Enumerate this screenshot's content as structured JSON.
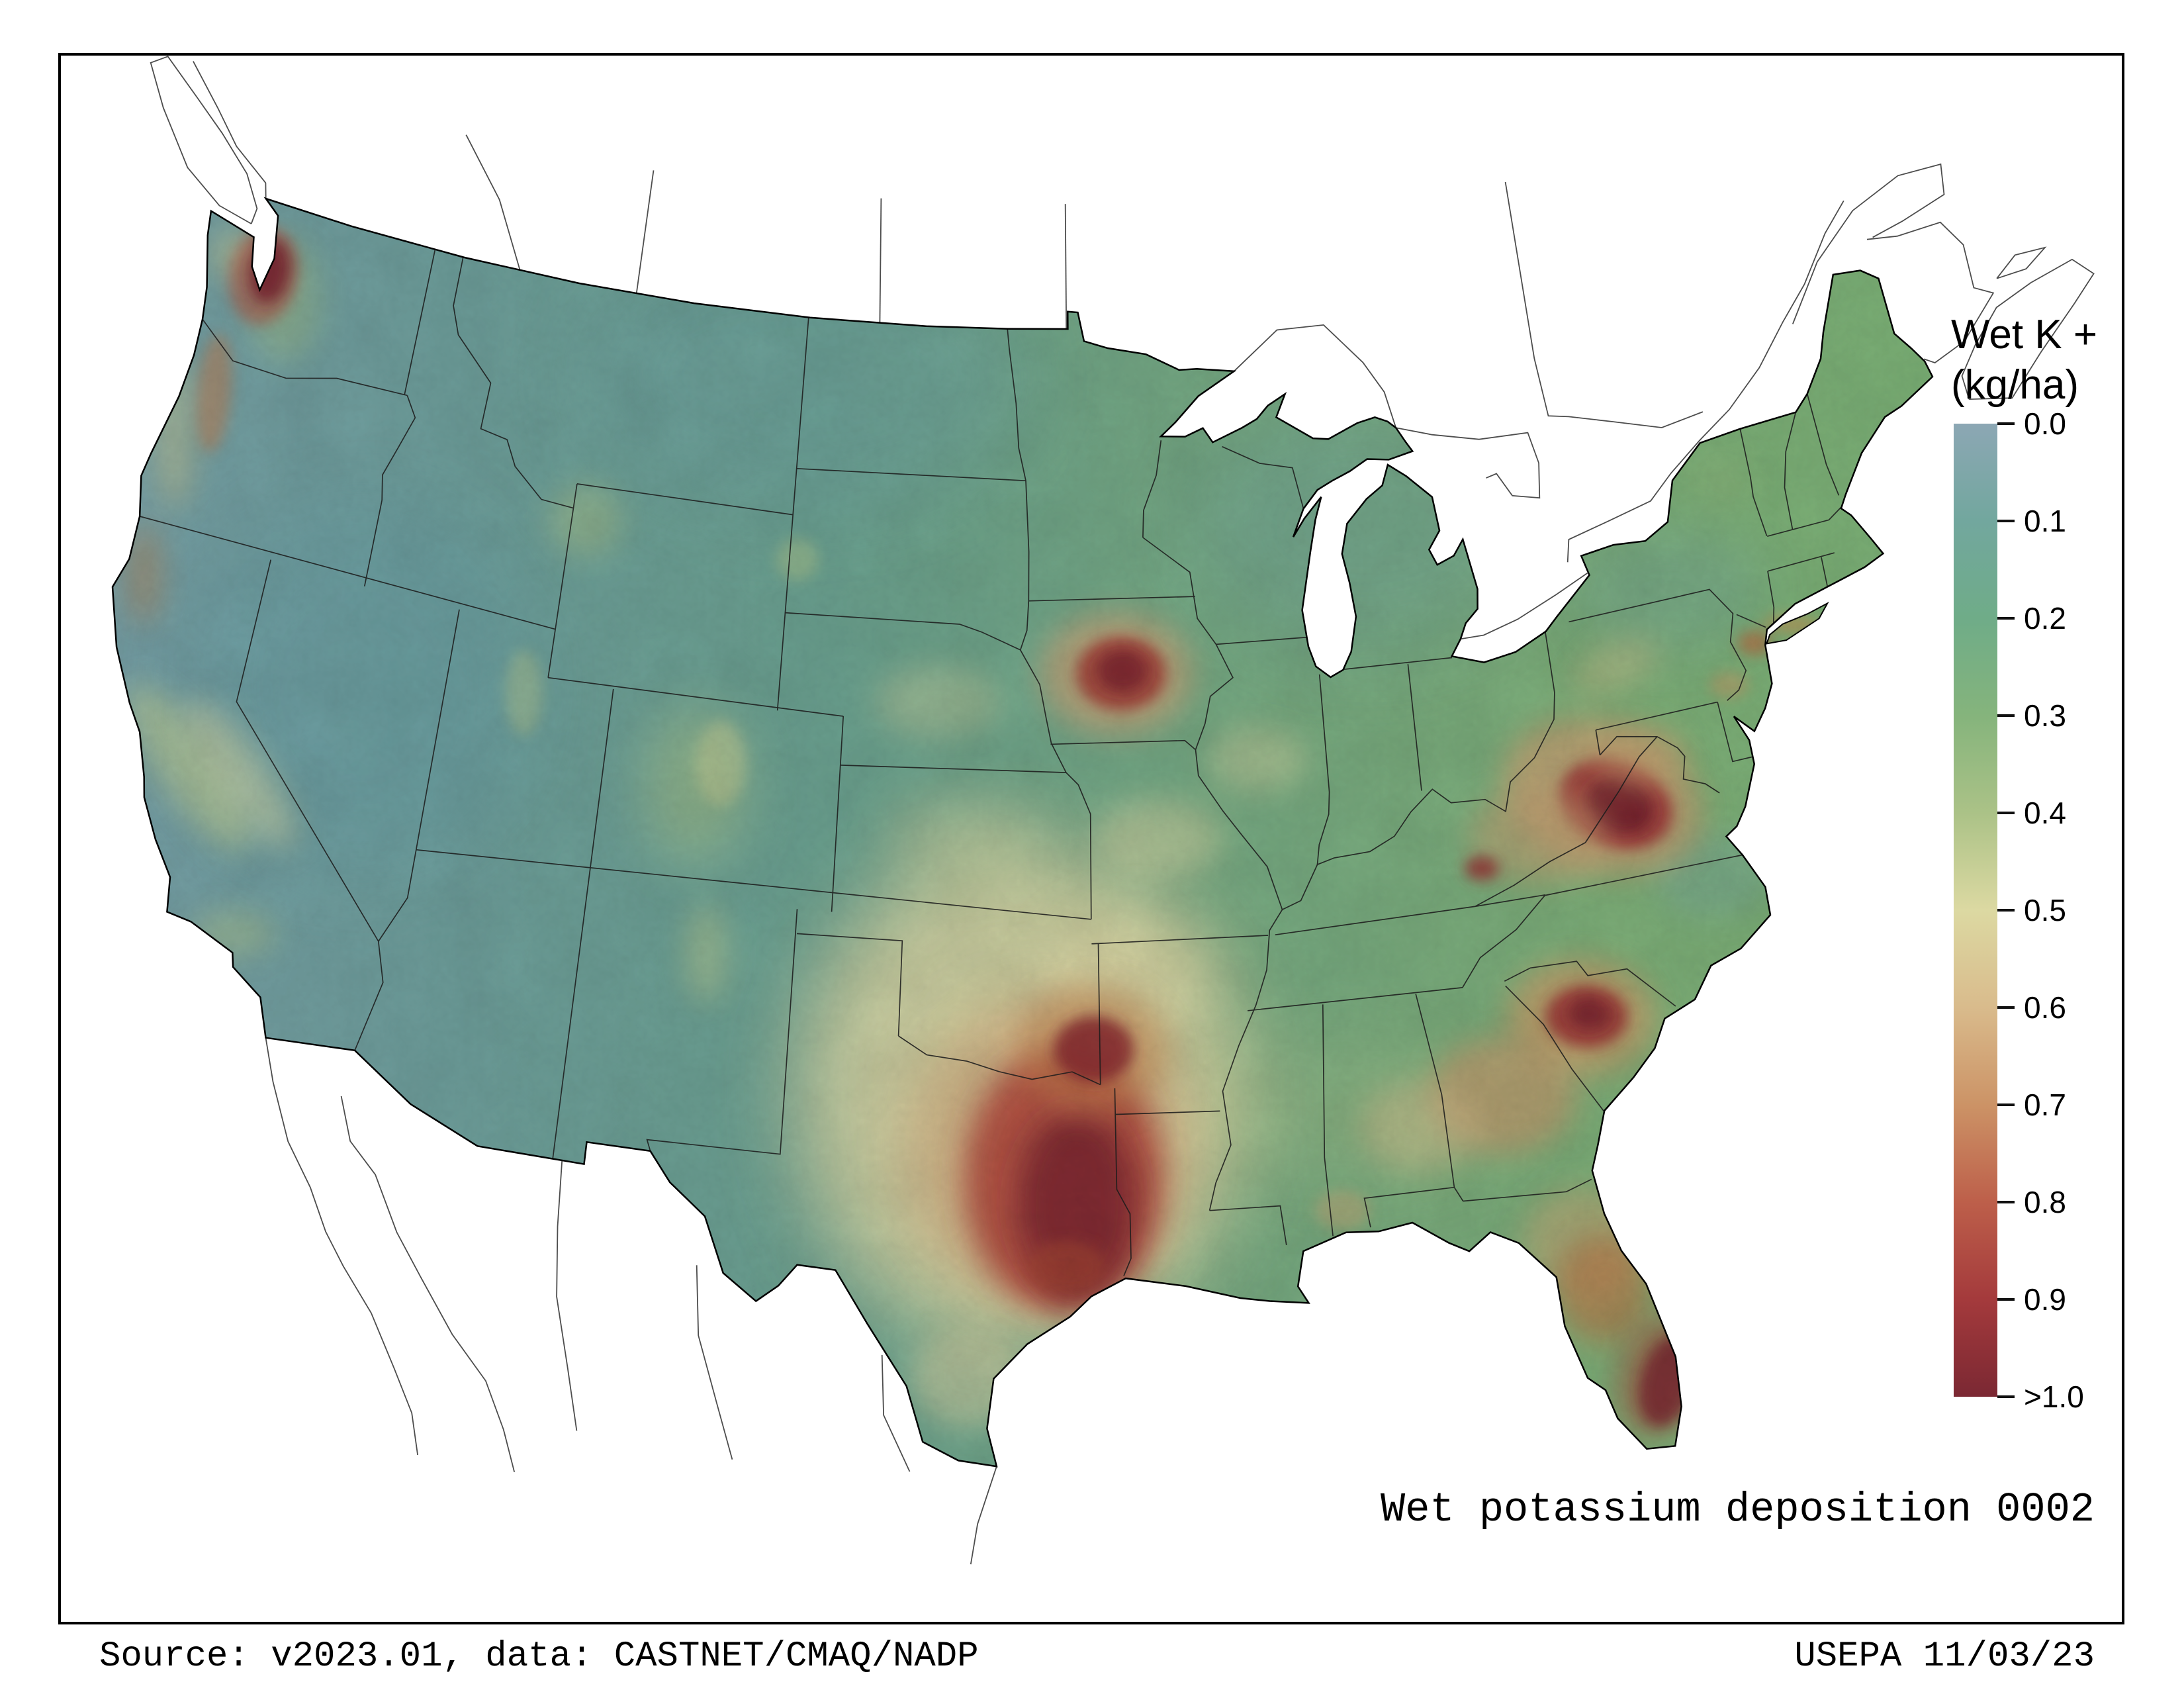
{
  "page": {
    "background": "#ffffff",
    "frame_color": "#000000"
  },
  "legend": {
    "title_line1": "Wet K +",
    "title_line2": "(kg/ha)",
    "tick_labels": [
      "0.0",
      "0.1",
      "0.2",
      "0.3",
      "0.4",
      "0.5",
      "0.6",
      "0.7",
      "0.8",
      "0.9",
      ">1.0"
    ],
    "colors": [
      "#8CA7B4",
      "#72A79E",
      "#6FAC88",
      "#85B47C",
      "#ABC287",
      "#DCD9A2",
      "#D9BB8C",
      "#CC9366",
      "#BD5F4A",
      "#A43A3C",
      "#7B2833"
    ]
  },
  "footer": {
    "caption": "Wet potassium deposition 0002",
    "source": "Source: v2023.01, data: CASTNET/CMAQ/NADP",
    "agency_date": "USEPA 11/03/23"
  },
  "map": {
    "region": "Contiguous United States",
    "quantity": "Wet K + deposition (kg/ha)",
    "base_gradient": [
      "#7CA5AD",
      "#72A4A1",
      "#6FA795",
      "#7AAF87",
      "#82B57D",
      "#81B97B"
    ],
    "high_areas": [
      {
        "area": "Puget Sound WA",
        "approx_level": ">1.0"
      },
      {
        "area": "Central Iowa",
        "approx_level": "0.9"
      },
      {
        "area": "East Texas / NW Louisiana",
        "approx_level": ">1.0"
      },
      {
        "area": "SE Oklahoma / W Arkansas",
        "approx_level": "0.9"
      },
      {
        "area": "Western Virginia",
        "approx_level": ">1.0"
      },
      {
        "area": "Central South Carolina",
        "approx_level": "0.9"
      },
      {
        "area": "Central Georgia",
        "approx_level": "0.6"
      },
      {
        "area": "Central Florida",
        "approx_level": "0.7"
      },
      {
        "area": "SE Florida coast",
        "approx_level": ">1.0"
      }
    ],
    "heat_blobs": [
      [
        -116.5,
        40.0,
        260,
        280,
        0,
        "#6BA2A8",
        0.45,
        "x"
      ],
      [
        -104.0,
        47.8,
        330,
        200,
        0,
        "#6FA4A6",
        0.4,
        "x"
      ],
      [
        -85.6,
        44.6,
        260,
        190,
        0,
        "#72A5A2",
        0.4,
        "x"
      ],
      [
        -76.6,
        42.2,
        150,
        95,
        0,
        "#74A79E",
        0.38,
        "l"
      ],
      [
        -76.9,
        36.3,
        90,
        65,
        0,
        "#78A89C",
        0.45,
        "m"
      ],
      [
        -88.0,
        32.8,
        260,
        100,
        0,
        "#AEC489",
        0.3,
        "x"
      ],
      [
        -96.6,
        33.4,
        340,
        380,
        0,
        "#E9E0AB",
        0.8,
        "x"
      ],
      [
        -98.3,
        38.6,
        120,
        65,
        0,
        "#DDD9A2",
        0.4,
        "l"
      ],
      [
        -99.2,
        41.4,
        95,
        55,
        0,
        "#D9D79F",
        0.35,
        "m"
      ],
      [
        -92.6,
        38.6,
        95,
        60,
        0,
        "#E2DAA5",
        0.45,
        "m"
      ],
      [
        -89.6,
        40.1,
        75,
        50,
        0,
        "#E0D9A5",
        0.4,
        "m"
      ],
      [
        -97.9,
        27.7,
        85,
        75,
        0,
        "#E2D8A7",
        0.5,
        "m"
      ],
      [
        -93.5,
        35.9,
        120,
        80,
        0,
        "#E6DDA9",
        0.5,
        "l"
      ],
      [
        -120.9,
        37.4,
        45,
        150,
        -35,
        "#CCD894",
        0.55,
        "m"
      ],
      [
        -119.4,
        37.6,
        38,
        135,
        -35,
        "#E0DFA8",
        0.5,
        "m"
      ],
      [
        -123.6,
        40.9,
        28,
        75,
        0,
        "#C98A55",
        0.45,
        "m"
      ],
      [
        -118.6,
        34.4,
        65,
        35,
        0,
        "#B9CC8D",
        0.45,
        "m"
      ],
      [
        -106.3,
        39.3,
        75,
        115,
        0,
        "#B5CC8A",
        0.5,
        "l"
      ],
      [
        -105.6,
        39.8,
        38,
        65,
        0,
        "#D9D694",
        0.4,
        "s"
      ],
      [
        -110.6,
        44.3,
        55,
        55,
        0,
        "#B7CD8D",
        0.45,
        "m"
      ],
      [
        -111.7,
        40.6,
        28,
        65,
        0,
        "#C3D291",
        0.4,
        "s"
      ],
      [
        -105.5,
        35.9,
        32,
        75,
        0,
        "#C9D593",
        0.45,
        "m"
      ],
      [
        -103.8,
        44.1,
        32,
        32,
        0,
        "#B9CF90",
        0.45,
        "s"
      ],
      [
        -121.6,
        47.2,
        55,
        95,
        0,
        "#A6C386",
        0.45,
        "m"
      ],
      [
        -123.9,
        43.9,
        32,
        120,
        0,
        "#D8CF92",
        0.45,
        "m"
      ],
      [
        -123.0,
        44.9,
        26,
        90,
        5,
        "#C87C4C",
        0.5,
        "s"
      ],
      [
        -123.5,
        47.7,
        42,
        40,
        0,
        "#D9D08E",
        0.45,
        "m"
      ],
      [
        -122.45,
        47.5,
        52,
        75,
        10,
        "#B54F3C",
        0.55,
        "s"
      ],
      [
        -122.3,
        47.62,
        30,
        48,
        10,
        "#7C2430",
        0.85,
        "s"
      ],
      [
        -95.9,
        32.3,
        215,
        235,
        0,
        "#D9B587",
        0.8,
        "l"
      ],
      [
        -95.45,
        31.7,
        150,
        200,
        0,
        "#B2453A",
        0.85,
        "m"
      ],
      [
        -95.1,
        31.2,
        90,
        140,
        0,
        "#7E2630",
        0.85,
        "m"
      ],
      [
        -94.65,
        34.35,
        115,
        95,
        0,
        "#C4854F",
        0.5,
        "m"
      ],
      [
        -94.6,
        34.35,
        60,
        50,
        0,
        "#8C2C31",
        0.85,
        "s"
      ],
      [
        -95.4,
        29.95,
        60,
        40,
        0,
        "#A84934",
        0.6,
        "s"
      ],
      [
        -93.75,
        42.0,
        115,
        92,
        0,
        "#D3A97B",
        0.7,
        "m"
      ],
      [
        -93.6,
        42.0,
        68,
        56,
        0,
        "#A63B36",
        0.8,
        "s"
      ],
      [
        -93.55,
        42.05,
        38,
        32,
        0,
        "#7F2730",
        0.85,
        "s"
      ],
      [
        -79.6,
        38.35,
        155,
        112,
        20,
        "#CFA476",
        0.75,
        "m"
      ],
      [
        -79.25,
        38.15,
        88,
        66,
        20,
        "#A03437",
        0.85,
        "s"
      ],
      [
        -79.15,
        38.1,
        52,
        42,
        20,
        "#76222E",
        0.88,
        "s"
      ],
      [
        -81.6,
        37.8,
        105,
        72,
        0,
        "#C9A173",
        0.55,
        "m"
      ],
      [
        -83.35,
        37.35,
        26,
        19,
        0,
        "#993034",
        0.8,
        "s"
      ],
      [
        -78.35,
        39.0,
        72,
        46,
        0,
        "#CFA573",
        0.55,
        "m"
      ],
      [
        -78.6,
        40.9,
        72,
        36,
        -25,
        "#D4C08C",
        0.4,
        "m"
      ],
      [
        -81.15,
        34.0,
        112,
        88,
        0,
        "#CFA06C",
        0.75,
        "m"
      ],
      [
        -81.0,
        34.0,
        62,
        47,
        0,
        "#9E3336",
        0.82,
        "s"
      ],
      [
        -80.92,
        34.05,
        30,
        24,
        0,
        "#7C2630",
        0.85,
        "s"
      ],
      [
        -83.55,
        32.7,
        112,
        88,
        0,
        "#C89C6E",
        0.7,
        "m"
      ],
      [
        -85.85,
        32.3,
        92,
        70,
        0,
        "#DDC290",
        0.45,
        "m"
      ],
      [
        -81.95,
        29.5,
        92,
        82,
        0,
        "#D2A878",
        0.5,
        "m"
      ],
      [
        -81.6,
        28.5,
        72,
        82,
        0,
        "#C07A4A",
        0.65,
        "m"
      ],
      [
        -80.5,
        26.6,
        62,
        92,
        15,
        "#B04A3A",
        0.55,
        "m"
      ],
      [
        -80.35,
        26.45,
        40,
        70,
        15,
        "#7D2530",
        0.82,
        "s"
      ],
      [
        -74.35,
        40.7,
        26,
        19,
        0,
        "#C06A40",
        0.65,
        "s"
      ],
      [
        -73.1,
        40.85,
        46,
        13,
        5,
        "#C98E4F",
        0.6,
        "s"
      ],
      [
        -75.35,
        40.0,
        30,
        20,
        0,
        "#CFA06A",
        0.5,
        "s"
      ],
      [
        -74.3,
        44.1,
        52,
        42,
        0,
        "#8FBA7F",
        0.45,
        "m"
      ],
      [
        -88.1,
        30.8,
        42,
        30,
        0,
        "#D0A977",
        0.45,
        "s"
      ]
    ]
  }
}
